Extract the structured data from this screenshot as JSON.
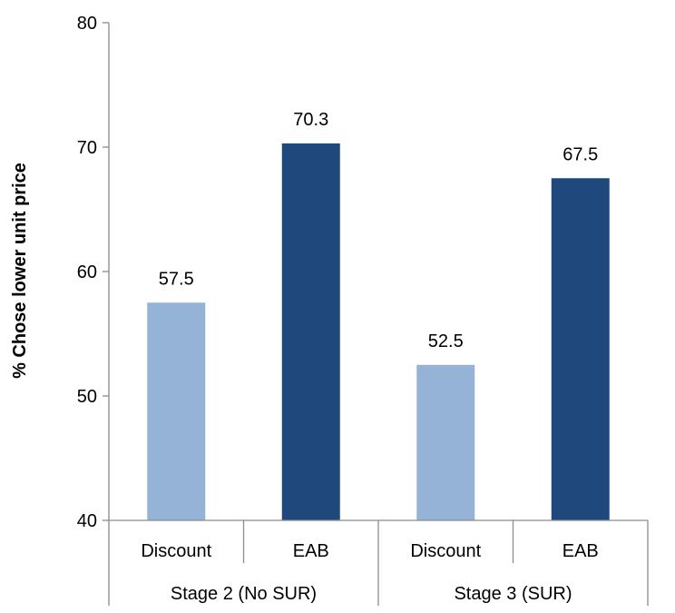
{
  "chart_data": {
    "type": "bar",
    "title": "",
    "xlabel": "",
    "ylabel": "% Chose lower unit price",
    "ylim": [
      40,
      80
    ],
    "yticks": [
      40,
      50,
      60,
      70,
      80
    ],
    "grid": false,
    "legend": "none",
    "groups": [
      {
        "label": "Stage 2 (No SUR)",
        "categories": [
          "Discount",
          "EAB"
        ]
      },
      {
        "label": "Stage 3 (SUR)",
        "categories": [
          "Discount",
          "EAB"
        ]
      }
    ],
    "categories": [
      "Discount",
      "EAB",
      "Discount",
      "EAB"
    ],
    "values": [
      57.5,
      70.3,
      52.5,
      67.5
    ],
    "data_labels": [
      "57.5",
      "70.3",
      "52.5",
      "67.5"
    ],
    "colors": [
      "#95B3D7",
      "#1F497D",
      "#95B3D7",
      "#1F497D"
    ]
  }
}
